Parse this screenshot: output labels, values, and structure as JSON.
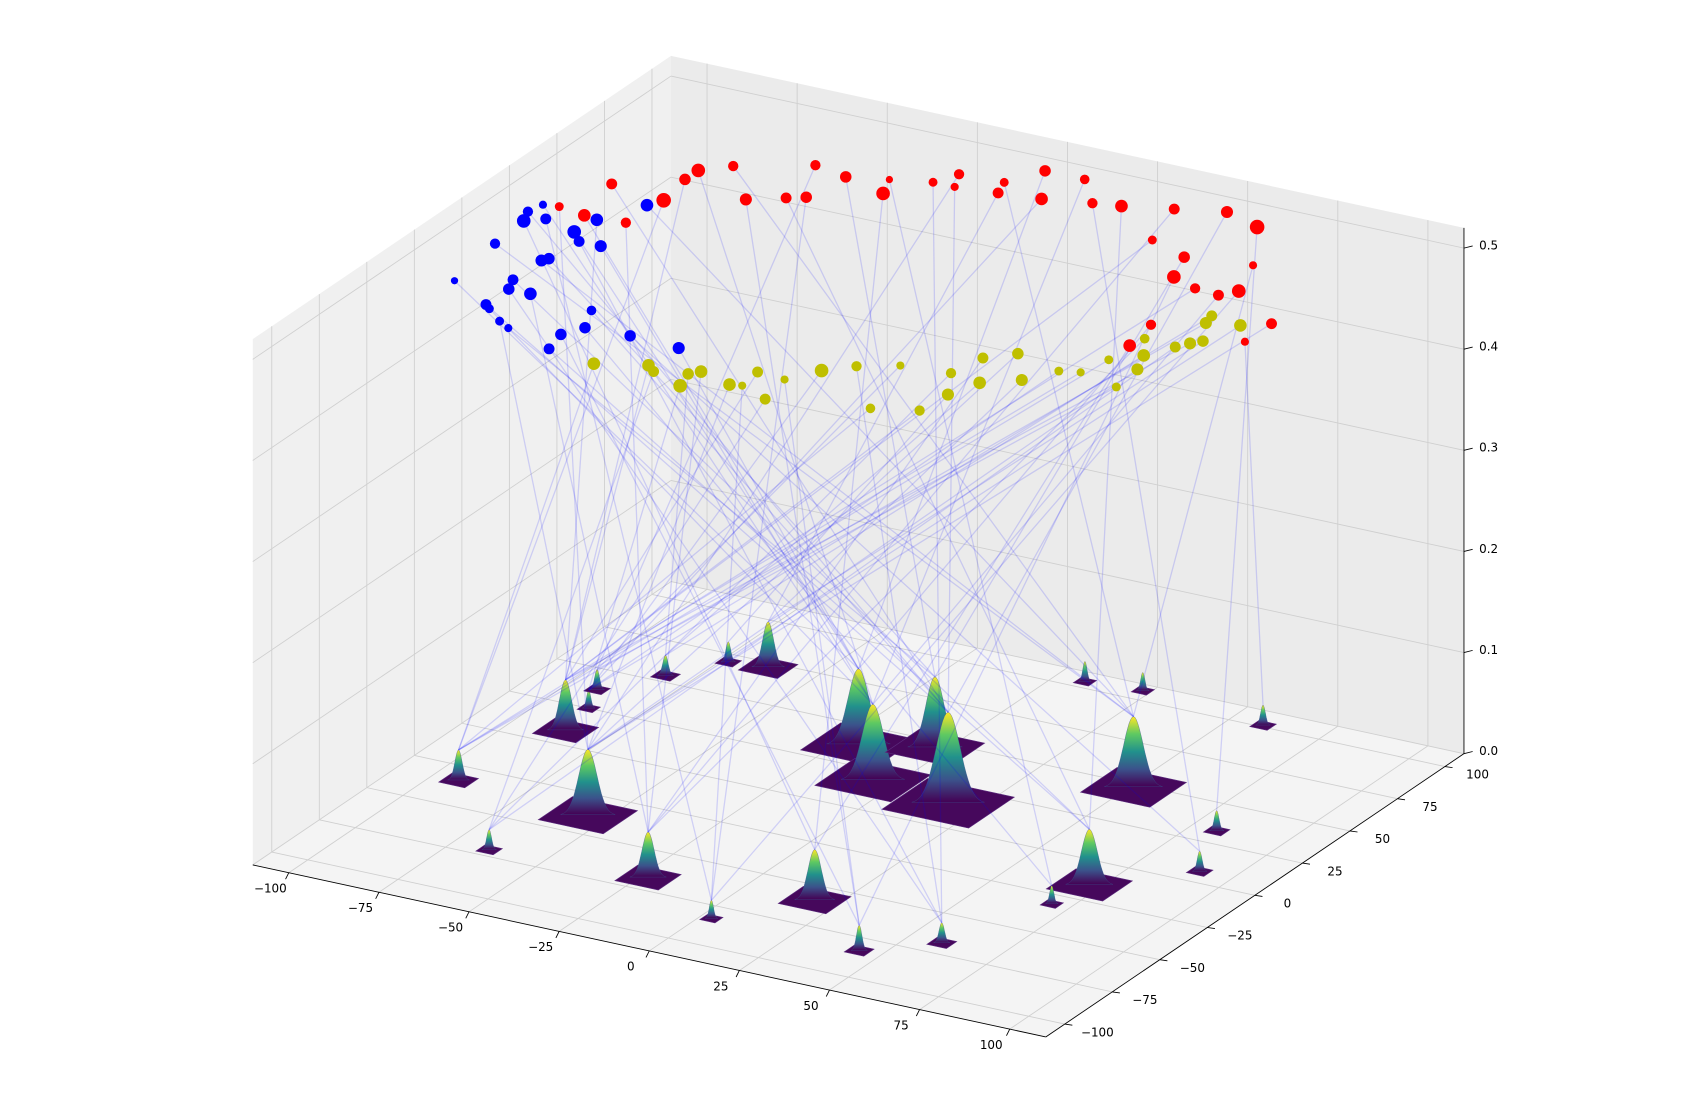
{
  "chart_data": {
    "type": "scatter3d",
    "xlim": [
      -110,
      110
    ],
    "ylim": [
      -110,
      110
    ],
    "zlim": [
      0,
      0.52
    ],
    "xticks": [
      {
        "value": -100,
        "label": "−100"
      },
      {
        "value": -75,
        "label": "−75"
      },
      {
        "value": -50,
        "label": "−50"
      },
      {
        "value": -25,
        "label": "−25"
      },
      0,
      25,
      50,
      75,
      100
    ],
    "yticks": [
      {
        "value": -100,
        "label": "−100"
      },
      {
        "value": -75,
        "label": "−75"
      },
      {
        "value": -50,
        "label": "−50"
      },
      {
        "value": -25,
        "label": "−25"
      },
      0,
      25,
      50,
      75,
      100
    ],
    "zticks": [
      {
        "value": 0,
        "label": "0.0"
      },
      0.1,
      0.2,
      0.3,
      0.4,
      0.5
    ],
    "grid": true,
    "link_color": "#0000ff",
    "peaks": {
      "x": [
        -93,
        -65,
        -55,
        -86,
        -88,
        -92,
        -82,
        -73,
        -63,
        -23,
        3,
        19,
        44,
        59,
        -20,
        -6,
        -3,
        17,
        51,
        72,
        70,
        91,
        82,
        59,
        8,
        23
      ],
      "y": [
        -34,
        -71,
        -38,
        9,
        25,
        37,
        54,
        70,
        72,
        -67,
        -83,
        -59,
        -83,
        -68,
        38,
        19,
        46,
        15,
        48,
        -15,
        -31,
        7,
        33,
        101,
        104,
        106
      ],
      "height": [
        0.03,
        0.02,
        0.065,
        0.05,
        0.018,
        0.02,
        0.02,
        0.02,
        0.045,
        0.045,
        0.018,
        0.05,
        0.025,
        0.02,
        0.075,
        0.075,
        0.07,
        0.09,
        0.07,
        0.055,
        0.018,
        0.02,
        0.02,
        0.02,
        0.02,
        0.018
      ],
      "sigma": [
        1.2,
        0.8,
        3,
        2,
        0.7,
        0.8,
        0.9,
        0.8,
        1.8,
        2,
        0.7,
        2.2,
        0.9,
        0.9,
        3.5,
        3.5,
        3,
        4,
        3.2,
        2.6,
        0.7,
        0.8,
        0.8,
        0.8,
        0.7,
        0.7
      ]
    },
    "series": [
      {
        "color": "#ff0000",
        "x": [
          -93,
          -85,
          -89,
          -74,
          -73,
          -75,
          -75,
          -69,
          -56,
          -48,
          -44,
          -52,
          -42,
          -29,
          -32,
          -22,
          -19,
          -16,
          -5,
          -7,
          6,
          -2,
          9,
          18,
          25,
          42,
          37,
          54,
          58,
          66,
          49,
          60,
          71,
          76,
          93,
          93,
          68,
          70,
          73
        ],
        "y": [
          19,
          17,
          39,
          18,
          36,
          51,
          58,
          65,
          47,
          53,
          56,
          76,
          73,
          68,
          77,
          81,
          89,
          81,
          83,
          90,
          85,
          102,
          102,
          89,
          91,
          75,
          96,
          69,
          56,
          52,
          101,
          96,
          73,
          56,
          41,
          27,
          25,
          10,
          51
        ],
        "z": [
          0.5,
          0.5,
          0.5,
          0.5,
          0.5,
          0.5,
          0.5,
          0.5,
          0.5,
          0.5,
          0.5,
          0.5,
          0.5,
          0.5,
          0.5,
          0.5,
          0.5,
          0.5,
          0.5,
          0.5,
          0.5,
          0.5,
          0.5,
          0.5,
          0.5,
          0.5,
          0.5,
          0.5,
          0.5,
          0.5,
          0.5,
          0.5,
          0.5,
          0.5,
          0.5,
          0.5,
          0.5,
          0.5,
          0.5
        ],
        "sizes": [
          30,
          60,
          45,
          40,
          80,
          50,
          70,
          40,
          55,
          45,
          50,
          40,
          50,
          70,
          20,
          30,
          40,
          25,
          45,
          30,
          60,
          50,
          35,
          40,
          60,
          30,
          45,
          50,
          70,
          40,
          55,
          80,
          25,
          70,
          45,
          25,
          40,
          60,
          45
        ],
        "links": [
          2,
          14,
          17,
          9,
          0,
          3,
          15,
          18,
          12,
          19,
          10,
          5,
          16,
          11,
          20,
          13,
          2,
          17,
          8,
          18,
          4,
          14,
          15,
          21,
          19,
          3,
          9,
          16,
          12,
          0,
          17,
          22,
          18,
          10,
          2,
          23,
          14,
          11,
          15
        ]
      },
      {
        "color": "#0000ff",
        "x": [
          -92,
          -78,
          -76,
          -95,
          -70,
          -66,
          -78,
          -80,
          -96,
          -72,
          -98,
          -97,
          -80,
          -92,
          -51,
          -79,
          -53,
          -82,
          -78,
          -50,
          -54,
          -81,
          -72,
          -38,
          -75,
          -24
        ],
        "y": [
          -38,
          -48,
          -50,
          -11,
          -56,
          -59,
          -36,
          -30,
          6,
          -36,
          12,
          18,
          -15,
          10,
          -66,
          -13,
          -56,
          6,
          1,
          -49,
          -38,
          16,
          1,
          -48,
          31,
          -49
        ],
        "z": [
          0.5,
          0.5,
          0.5,
          0.5,
          0.5,
          0.5,
          0.5,
          0.5,
          0.5,
          0.5,
          0.5,
          0.5,
          0.5,
          0.5,
          0.5,
          0.5,
          0.5,
          0.5,
          0.5,
          0.5,
          0.5,
          0.5,
          0.5,
          0.5,
          0.5,
          0.5
        ],
        "sizes": [
          20,
          45,
          30,
          40,
          30,
          25,
          50,
          45,
          70,
          60,
          40,
          25,
          55,
          45,
          45,
          50,
          50,
          70,
          45,
          50,
          35,
          60,
          55,
          50,
          60,
          55
        ],
        "links": [
          14,
          17,
          15,
          18,
          2,
          16,
          13,
          19,
          11,
          9,
          17,
          15,
          18,
          10,
          19,
          16,
          12,
          14,
          13,
          20,
          17,
          3,
          15,
          21,
          18,
          14
        ]
      },
      {
        "color": "#bfbf00",
        "x": [
          -37,
          -25,
          -22,
          -12,
          -14,
          -12,
          -2,
          1,
          0,
          10,
          8,
          13,
          19,
          35,
          28,
          46,
          47,
          41,
          43,
          50,
          49,
          58,
          63,
          68,
          70,
          80,
          79,
          76,
          71,
          80,
          82,
          84,
          79,
          87,
          78
        ],
        "y": [
          -69,
          -63,
          -66,
          -71,
          -63,
          -60,
          -64,
          -63,
          -53,
          -68,
          -54,
          -44,
          -37,
          -60,
          -31,
          -55,
          -42,
          -29,
          -16,
          -31,
          -9,
          -24,
          -14,
          -12,
          -1,
          -16,
          -3,
          6,
          16,
          15,
          19,
          22,
          33,
          36,
          38
        ],
        "z": [
          0.5,
          0.5,
          0.5,
          0.5,
          0.5,
          0.5,
          0.5,
          0.5,
          0.5,
          0.5,
          0.5,
          0.5,
          0.5,
          0.5,
          0.5,
          0.5,
          0.5,
          0.5,
          0.5,
          0.5,
          0.5,
          0.5,
          0.5,
          0.5,
          0.5,
          0.5,
          0.5,
          0.5,
          0.5,
          0.5,
          0.5,
          0.5,
          0.5,
          0.5,
          0.5
        ],
        "sizes": [
          60,
          60,
          45,
          70,
          50,
          60,
          60,
          25,
          45,
          45,
          25,
          70,
          40,
          35,
          25,
          40,
          55,
          40,
          45,
          60,
          50,
          55,
          30,
          25,
          30,
          30,
          55,
          60,
          35,
          45,
          55,
          50,
          55,
          60,
          45
        ],
        "links": [
          0,
          3,
          1,
          4,
          6,
          9,
          2,
          10,
          3,
          1,
          12,
          4,
          13,
          0,
          5,
          3,
          7,
          1,
          9,
          6,
          2,
          8,
          4,
          3,
          0,
          5,
          2,
          6,
          9,
          1,
          3,
          8,
          0,
          2,
          4
        ]
      }
    ]
  }
}
